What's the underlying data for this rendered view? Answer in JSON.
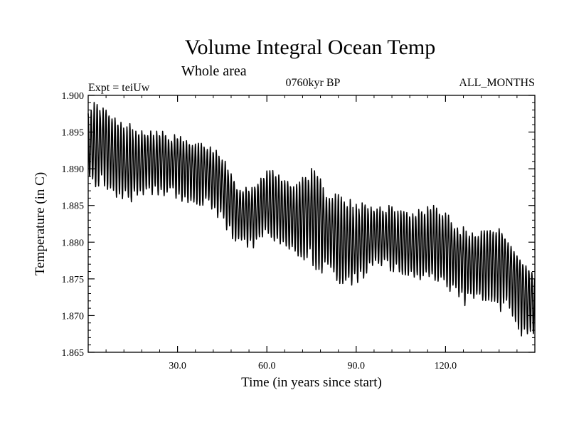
{
  "chart_data": {
    "type": "line",
    "title": "Volume Integral Ocean Temp",
    "subtitle": "Whole area",
    "experiment": "Expt = teiUw",
    "period": "0760kyr BP",
    "months": "ALL_MONTHS",
    "xlabel": "Time (in years since start)",
    "ylabel": "Temperature (in C)",
    "xlim": [
      0,
      150
    ],
    "ylim": [
      1.865,
      1.9
    ],
    "x_ticks": [
      30,
      60,
      90,
      120
    ],
    "x_tick_labels": [
      "30.0",
      "60.0",
      "90.0",
      "120.0"
    ],
    "y_ticks": [
      1.865,
      1.87,
      1.875,
      1.88,
      1.885,
      1.89,
      1.895,
      1.9
    ],
    "y_tick_labels": [
      "1.865",
      "1.870",
      "1.875",
      "1.880",
      "1.885",
      "1.890",
      "1.895",
      "1.900"
    ],
    "grid": false,
    "series": [
      {
        "name": "Volume integral ocean temperature",
        "seasonal_cycle_period_years": 1,
        "trend_years": [
          0,
          5,
          10,
          15,
          20,
          25,
          30,
          35,
          40,
          45,
          50,
          55,
          60,
          65,
          70,
          75,
          80,
          85,
          90,
          95,
          100,
          105,
          110,
          115,
          120,
          125,
          130,
          135,
          140,
          145,
          150
        ],
        "trend_values": [
          1.8925,
          1.894,
          1.8915,
          1.8905,
          1.8915,
          1.891,
          1.891,
          1.89,
          1.8895,
          1.888,
          1.8845,
          1.884,
          1.8855,
          1.8845,
          1.883,
          1.8845,
          1.882,
          1.88,
          1.8795,
          1.881,
          1.881,
          1.88,
          1.8795,
          1.8795,
          1.8795,
          1.878,
          1.877,
          1.8775,
          1.8775,
          1.8745,
          1.8715
        ],
        "envelope_high": [
          1.8995,
          1.8985,
          1.8965,
          1.896,
          1.8955,
          1.895,
          1.8945,
          1.8935,
          1.8935,
          1.892,
          1.888,
          1.8875,
          1.8905,
          1.889,
          1.8885,
          1.89,
          1.8875,
          1.8865,
          1.885,
          1.8855,
          1.885,
          1.8845,
          1.8845,
          1.8855,
          1.8845,
          1.882,
          1.882,
          1.882,
          1.8815,
          1.8775,
          1.8765
        ],
        "envelope_low": [
          1.8875,
          1.8875,
          1.886,
          1.8855,
          1.886,
          1.8865,
          1.886,
          1.885,
          1.885,
          1.8825,
          1.879,
          1.879,
          1.8805,
          1.8795,
          1.8775,
          1.877,
          1.8755,
          1.874,
          1.8745,
          1.876,
          1.8765,
          1.8755,
          1.8745,
          1.875,
          1.8735,
          1.8715,
          1.8715,
          1.8715,
          1.8705,
          1.8675,
          1.8665
        ]
      }
    ]
  }
}
